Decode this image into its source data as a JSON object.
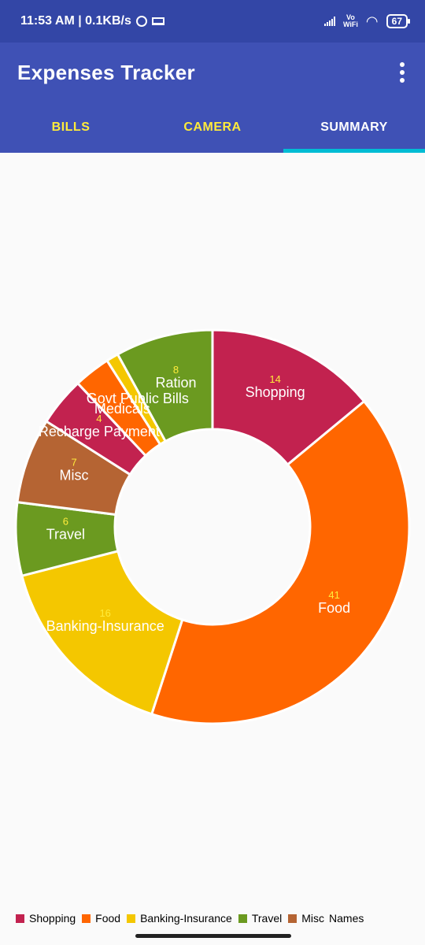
{
  "status_bar": {
    "time_speed": "11:53 AM | 0.1KB/s",
    "vowifi_top": "Vo",
    "vowifi_bottom": "WiFi",
    "battery": "67"
  },
  "app_bar": {
    "title": "Expenses Tracker",
    "menu_icon": "more-vert-icon"
  },
  "tabs": [
    {
      "label": "BILLS",
      "active": false
    },
    {
      "label": "CAMERA",
      "active": false
    },
    {
      "label": "SUMMARY",
      "active": true
    }
  ],
  "chart_data": {
    "type": "pie",
    "donut": true,
    "categories": [
      "Shopping",
      "Food",
      "Banking-Insurance",
      "Travel",
      "Misc",
      "Recharge Payment",
      "Medicals",
      "Govt Public Bills",
      "Ration"
    ],
    "values": [
      14,
      41,
      16,
      6,
      7,
      4,
      3,
      1,
      8
    ],
    "labels": [
      "14",
      "41",
      "16",
      "6",
      "7",
      "4",
      "",
      "",
      "8"
    ],
    "colors": [
      "#c2224f",
      "#ff6600",
      "#f4c700",
      "#6b9a20",
      "#b56433",
      "#c2224f",
      "#ff6600",
      "#f4c700",
      "#6b9a20"
    ],
    "legend": {
      "position": "bottom-left",
      "entries": [
        {
          "name": "Shopping",
          "color": "#c2224f"
        },
        {
          "name": "Food",
          "color": "#ff6600"
        },
        {
          "name": "Banking-Insurance",
          "color": "#f4c700"
        },
        {
          "name": "Travel",
          "color": "#6b9a20"
        },
        {
          "name": "Misc",
          "color": "#b56433"
        }
      ],
      "title": "Names"
    }
  }
}
